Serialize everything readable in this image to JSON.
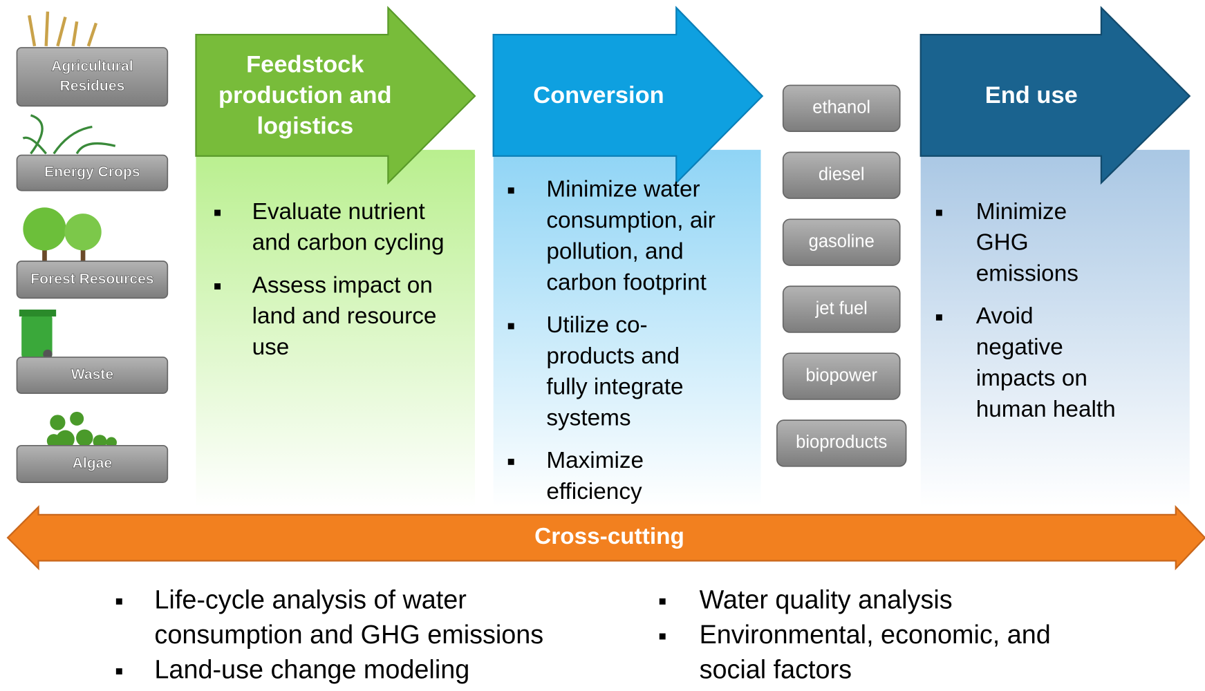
{
  "feedstocks": [
    [
      "Agricultural",
      "Residues"
    ],
    [
      "Energy Crops"
    ],
    [
      "Forest Resources"
    ],
    [
      "Waste"
    ],
    [
      "Algae"
    ]
  ],
  "stages": [
    {
      "title": [
        "Feedstock",
        "production and",
        "logistics"
      ],
      "bullets": [
        [
          "Evaluate nutrient",
          "and carbon cycling"
        ],
        [
          "Assess impact on",
          "land and resource",
          "use"
        ]
      ]
    },
    {
      "title": [
        "Conversion"
      ],
      "bullets": [
        [
          "Minimize water",
          "consumption, air",
          "pollution, and",
          "carbon footprint"
        ],
        [
          "Utilize co-",
          "products and",
          "fully integrate",
          "systems"
        ],
        [
          "Maximize",
          "efficiency"
        ]
      ]
    },
    {
      "title": [
        "End use"
      ],
      "bullets": [
        [
          "Minimize",
          "GHG",
          "emissions"
        ],
        [
          "Avoid",
          "negative",
          "impacts on",
          "human health"
        ]
      ]
    }
  ],
  "products": [
    "ethanol",
    "diesel",
    "gasoline",
    "jet  fuel",
    "biopower",
    "bioproducts"
  ],
  "crosscutting": {
    "title": "Cross-cutting",
    "columns": [
      [
        [
          "Life-cycle analysis of water",
          "consumption and GHG emissions"
        ],
        [
          "Land-use change modeling"
        ]
      ],
      [
        [
          "Water quality analysis"
        ],
        [
          "Environmental, economic, and",
          "social factors"
        ]
      ]
    ]
  }
}
